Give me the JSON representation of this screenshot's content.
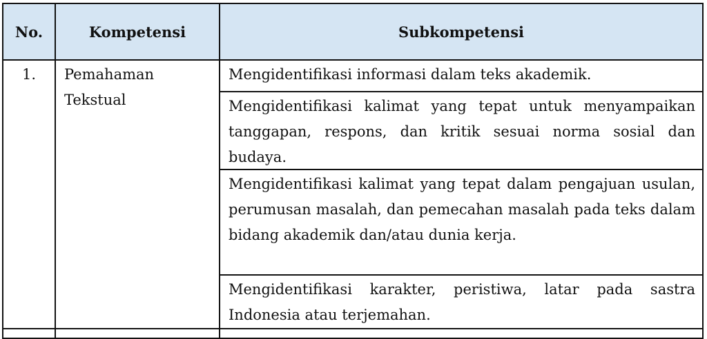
{
  "table": {
    "headers": [
      "No.",
      "Kompetensi",
      "Subkompetensi"
    ],
    "header_bg": "#d5e5f3",
    "rows": [
      {
        "no": "1.",
        "kompetensi": "Pemahaman Tekstual",
        "subkompetensi": [
          "Mengidentifikasi informasi dalam teks akademik.",
          "Mengidentifikasi kalimat yang tepat untuk menyampaikan tanggapan, respons, dan kritik sesuai norma sosial dan budaya.",
          "Mengidentifikasi kalimat yang tepat dalam pengajuan usulan, perumusan masalah, dan pemecahan masalah pada teks dalam bidang akademik dan/atau dunia kerja.",
          "Mengidentifikasi karakter, peristiwa, latar pada sastra Indonesia atau terjemahan."
        ]
      }
    ]
  }
}
